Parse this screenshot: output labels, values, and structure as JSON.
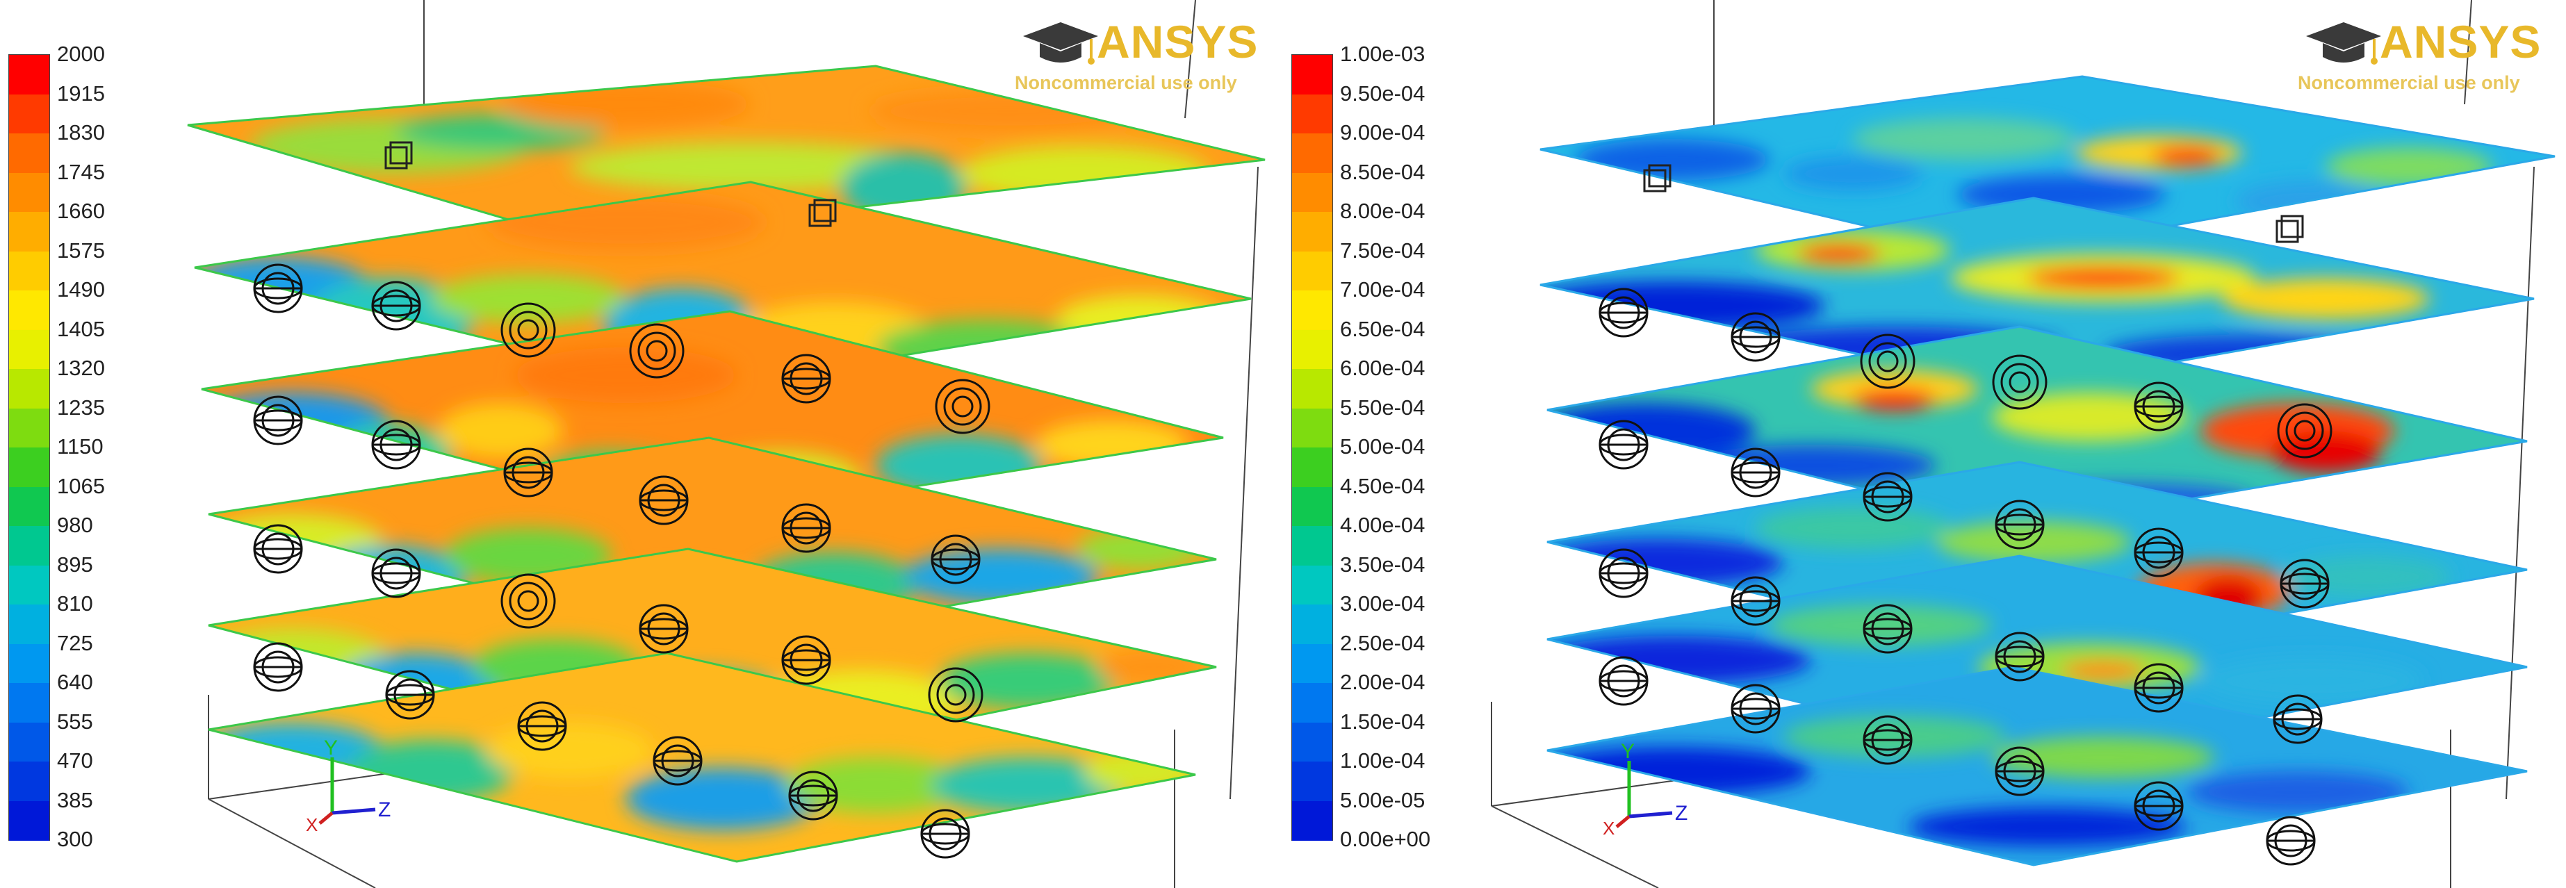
{
  "panels": [
    {
      "id": "temperature",
      "colorbar": {
        "ticks": [
          "2000",
          "1915",
          "1830",
          "1745",
          "1660",
          "1575",
          "1490",
          "1405",
          "1320",
          "1235",
          "1150",
          "1065",
          "980",
          "895",
          "810",
          "725",
          "640",
          "555",
          "470",
          "385",
          "300"
        ]
      },
      "logo": {
        "word": "ANSYS",
        "subtitle": "Noncommercial use only"
      },
      "triad": {
        "y": "Y",
        "x": "X",
        "z": "Z"
      }
    },
    {
      "id": "concentration",
      "colorbar": {
        "ticks": [
          "1.00e-03",
          "9.50e-04",
          "9.00e-04",
          "8.50e-04",
          "8.00e-04",
          "7.50e-04",
          "7.00e-04",
          "6.50e-04",
          "6.00e-04",
          "5.50e-04",
          "5.00e-04",
          "4.50e-04",
          "4.00e-04",
          "3.50e-04",
          "3.00e-04",
          "2.50e-04",
          "2.00e-04",
          "1.50e-04",
          "1.00e-04",
          "5.00e-05",
          "0.00e+00"
        ]
      },
      "logo": {
        "word": "ANSYS",
        "subtitle": "Noncommercial use only"
      },
      "triad": {
        "y": "Y",
        "x": "X",
        "z": "Z"
      }
    }
  ],
  "colors": {
    "spectrum": [
      "#ff0000",
      "#ff3a00",
      "#ff6a00",
      "#ff8c00",
      "#ffad00",
      "#ffcc00",
      "#ffe800",
      "#e8f000",
      "#b8e800",
      "#7edc10",
      "#3ccf20",
      "#10c850",
      "#00c890",
      "#00c8c0",
      "#00b0e0",
      "#0098f0",
      "#0078f0",
      "#0058e8",
      "#0038e0",
      "#0018d8",
      "#0000cc"
    ],
    "logo": "#e8b82a"
  }
}
